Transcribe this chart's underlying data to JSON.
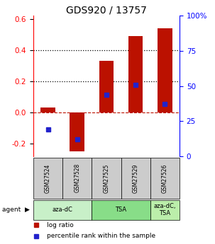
{
  "title": "GDS920 / 13757",
  "samples": [
    "GSM27524",
    "GSM27528",
    "GSM27525",
    "GSM27529",
    "GSM27526"
  ],
  "log_ratios": [
    0.03,
    -0.25,
    0.33,
    0.49,
    0.54
  ],
  "percentile_ranks_pct": [
    19,
    12,
    44,
    51,
    37
  ],
  "agent_groups": [
    [
      0,
      1
    ],
    [
      2,
      3
    ],
    [
      4
    ]
  ],
  "agent_labels": [
    "aza-dC",
    "TSA",
    "aza-dC,\nTSA"
  ],
  "agent_colors": [
    "#c8f0c8",
    "#88dd88",
    "#bbeeaa"
  ],
  "bar_color": "#bb1100",
  "dot_color": "#2222cc",
  "ylim_left": [
    -0.28,
    0.62
  ],
  "ylim_right": [
    0,
    100
  ],
  "yticks_left": [
    -0.2,
    0.0,
    0.2,
    0.4,
    0.6
  ],
  "yticks_right": [
    0,
    25,
    50,
    75,
    100
  ],
  "ytick_right_labels": [
    "0",
    "25",
    "50",
    "75",
    "100%"
  ],
  "hline_y": [
    0.2,
    0.4
  ],
  "zero_line_y": 0.0,
  "sample_bg_color": "#cccccc",
  "legend_red": "log ratio",
  "legend_blue": "percentile rank within the sample"
}
